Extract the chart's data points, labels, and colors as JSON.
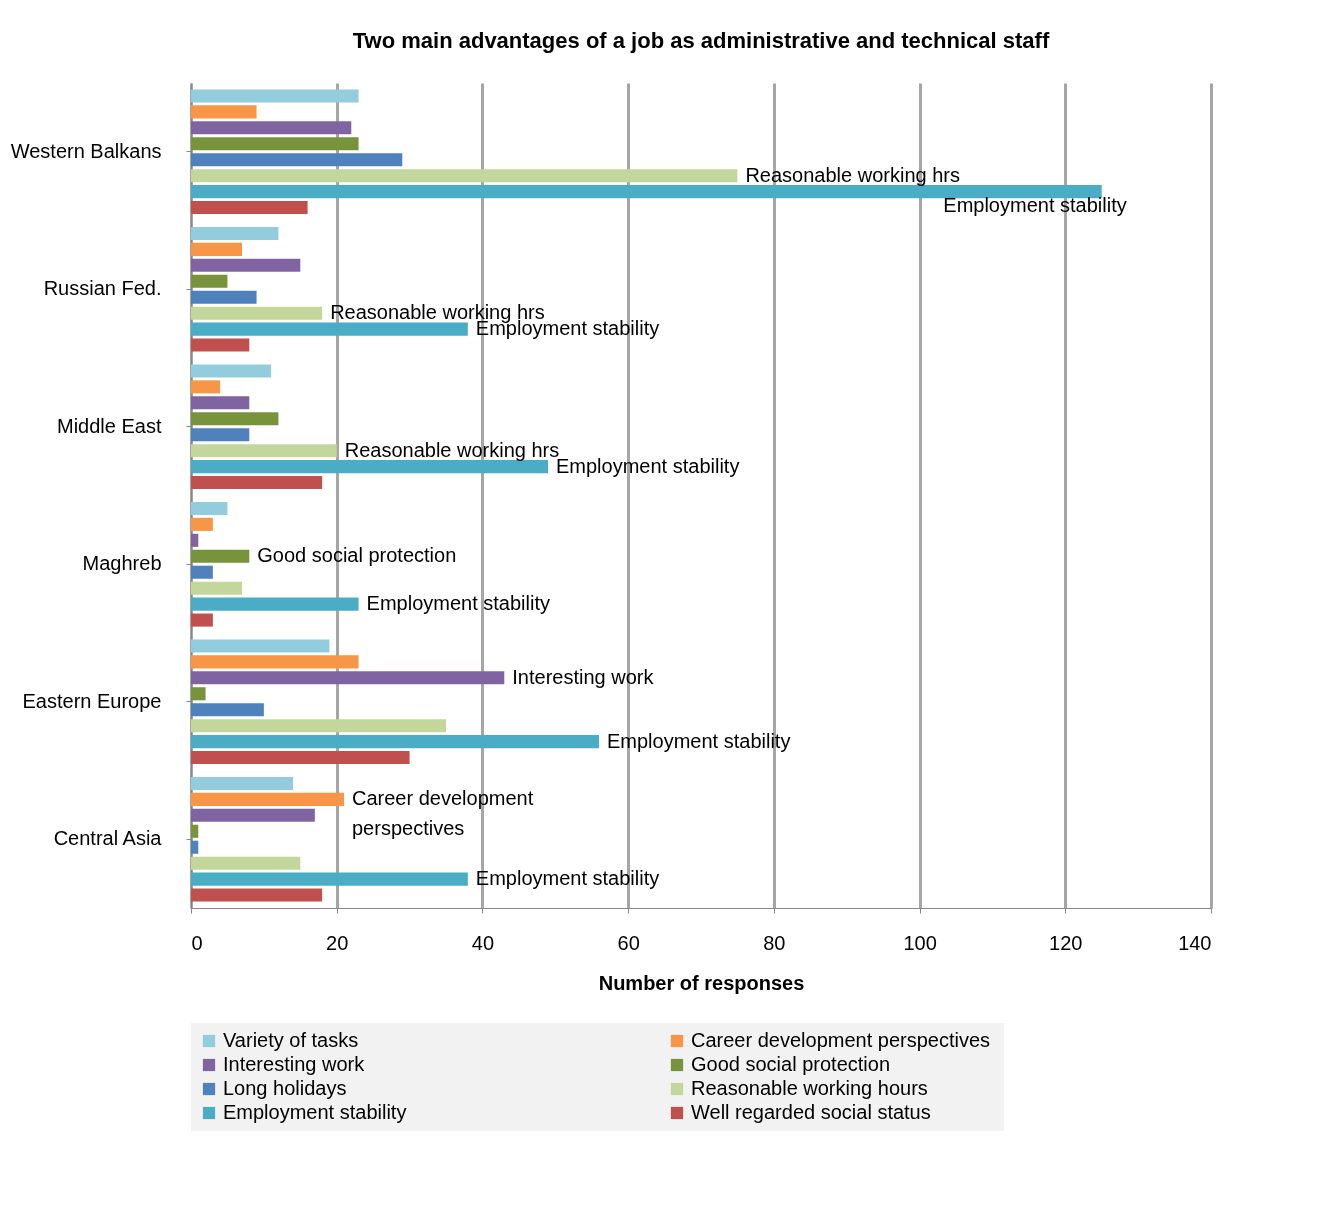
{
  "chart_data": {
    "type": "bar",
    "orientation": "horizontal",
    "title": "Two main advantages of a job as administrative and technical staff",
    "xlabel": "Number of responses",
    "categories": [
      "Western Balkans",
      "Russian Fed.",
      "Middle East",
      "Maghreb",
      "Eastern Europe",
      "Central Asia"
    ],
    "series": [
      {
        "name": "Variety of tasks",
        "color": "#93cddd",
        "values": [
          23,
          12,
          11,
          5,
          19,
          14
        ]
      },
      {
        "name": "Career development  perspectives",
        "color": "#f79646",
        "values": [
          9,
          7,
          4,
          3,
          23,
          21
        ],
        "value_labels": [
          null,
          null,
          null,
          null,
          null,
          "Career development perspectives"
        ]
      },
      {
        "name": "Interesting work",
        "color": "#8064a2",
        "values": [
          22,
          15,
          8,
          1,
          43,
          17
        ],
        "value_labels": [
          null,
          null,
          null,
          null,
          "Interesting work",
          null
        ]
      },
      {
        "name": "Good social protection",
        "color": "#77933c",
        "values": [
          23,
          5,
          12,
          8,
          2,
          1
        ],
        "value_labels": [
          null,
          null,
          null,
          "Good social protection",
          null,
          null
        ]
      },
      {
        "name": "Long holidays",
        "color": "#4f81bd",
        "values": [
          29,
          9,
          8,
          3,
          10,
          1
        ]
      },
      {
        "name": "Reasonable working hours",
        "color": "#c3d69b",
        "values": [
          75,
          18,
          20,
          7,
          35,
          15
        ],
        "value_labels": [
          "Reasonable working hrs",
          "Reasonable working hrs",
          "Reasonable working hrs",
          null,
          null,
          null
        ]
      },
      {
        "name": "Employment stability",
        "color": "#4bacc6",
        "values": [
          125,
          38,
          49,
          23,
          56,
          38
        ],
        "value_labels": [
          "Employment stability",
          "Employment stability",
          "Employment stability",
          "Employment stability",
          "Employment stability",
          "Employment stability"
        ]
      },
      {
        "name": "Well regarded social status",
        "color": "#c0504d",
        "values": [
          16,
          8,
          18,
          3,
          30,
          18
        ]
      }
    ],
    "xlim": [
      0,
      140
    ],
    "xticks": [
      0,
      20,
      40,
      60,
      80,
      100,
      120,
      140
    ],
    "grid": "x",
    "legend": "bottom"
  }
}
